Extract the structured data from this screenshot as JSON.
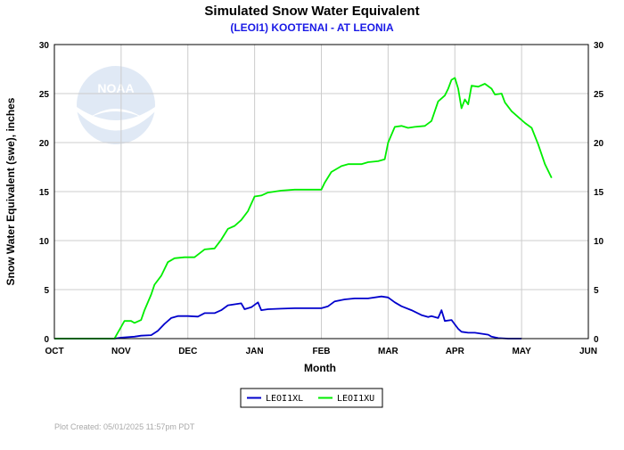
{
  "chart_data": {
    "type": "line",
    "title": "Simulated Snow Water Equivalent",
    "subtitle": "(LEOI1) KOOTENAI - AT LEONIA",
    "xlabel": "Month",
    "ylabel": "Snow Water Equivalent (swe),  inches",
    "x_ticks": [
      "OCT",
      "NOV",
      "DEC",
      "JAN",
      "FEB",
      "MAR",
      "APR",
      "MAY",
      "JUN"
    ],
    "y_ticks": [
      0,
      5,
      10,
      15,
      20,
      25,
      30
    ],
    "xlim": [
      0,
      8
    ],
    "ylim": [
      0,
      30
    ],
    "grid": true,
    "legend_position": "bottom-center",
    "footer": "Plot Created: 05/01/2025 11:57pm PDT",
    "series": [
      {
        "name": "LEOI1XL",
        "color": "#0000cc",
        "points": [
          [
            0,
            0
          ],
          [
            0.9,
            0
          ],
          [
            1.0,
            0.1
          ],
          [
            1.2,
            0.2
          ],
          [
            1.3,
            0.3
          ],
          [
            1.45,
            0.35
          ],
          [
            1.55,
            0.8
          ],
          [
            1.65,
            1.5
          ],
          [
            1.75,
            2.1
          ],
          [
            1.85,
            2.3
          ],
          [
            2.0,
            2.3
          ],
          [
            2.15,
            2.25
          ],
          [
            2.25,
            2.6
          ],
          [
            2.4,
            2.6
          ],
          [
            2.5,
            2.9
          ],
          [
            2.6,
            3.4
          ],
          [
            2.7,
            3.5
          ],
          [
            2.8,
            3.6
          ],
          [
            2.85,
            3.0
          ],
          [
            2.95,
            3.2
          ],
          [
            3.05,
            3.7
          ],
          [
            3.1,
            2.9
          ],
          [
            3.2,
            3.0
          ],
          [
            3.4,
            3.05
          ],
          [
            3.6,
            3.1
          ],
          [
            3.8,
            3.1
          ],
          [
            4.0,
            3.1
          ],
          [
            4.1,
            3.3
          ],
          [
            4.2,
            3.8
          ],
          [
            4.35,
            4.0
          ],
          [
            4.5,
            4.1
          ],
          [
            4.7,
            4.1
          ],
          [
            4.9,
            4.3
          ],
          [
            5.0,
            4.2
          ],
          [
            5.1,
            3.7
          ],
          [
            5.2,
            3.3
          ],
          [
            5.35,
            2.9
          ],
          [
            5.5,
            2.4
          ],
          [
            5.6,
            2.2
          ],
          [
            5.65,
            2.3
          ],
          [
            5.75,
            2.1
          ],
          [
            5.8,
            2.9
          ],
          [
            5.85,
            1.8
          ],
          [
            5.95,
            1.9
          ],
          [
            6.05,
            1.0
          ],
          [
            6.1,
            0.7
          ],
          [
            6.2,
            0.6
          ],
          [
            6.3,
            0.6
          ],
          [
            6.4,
            0.5
          ],
          [
            6.5,
            0.4
          ],
          [
            6.55,
            0.2
          ],
          [
            6.65,
            0.05
          ],
          [
            6.8,
            0.0
          ],
          [
            7.0,
            0.0
          ]
        ]
      },
      {
        "name": "LEOI1XU",
        "color": "#00ee00",
        "points": [
          [
            0,
            0
          ],
          [
            0.9,
            0
          ],
          [
            0.95,
            0.6
          ],
          [
            1.0,
            1.2
          ],
          [
            1.05,
            1.8
          ],
          [
            1.15,
            1.8
          ],
          [
            1.2,
            1.6
          ],
          [
            1.3,
            1.9
          ],
          [
            1.35,
            2.9
          ],
          [
            1.45,
            4.5
          ],
          [
            1.5,
            5.5
          ],
          [
            1.6,
            6.4
          ],
          [
            1.7,
            7.8
          ],
          [
            1.8,
            8.2
          ],
          [
            1.95,
            8.3
          ],
          [
            2.1,
            8.3
          ],
          [
            2.25,
            9.1
          ],
          [
            2.4,
            9.2
          ],
          [
            2.5,
            10.1
          ],
          [
            2.6,
            11.2
          ],
          [
            2.7,
            11.5
          ],
          [
            2.8,
            12.1
          ],
          [
            2.9,
            13.0
          ],
          [
            3.0,
            14.5
          ],
          [
            3.1,
            14.6
          ],
          [
            3.2,
            14.9
          ],
          [
            3.4,
            15.1
          ],
          [
            3.6,
            15.2
          ],
          [
            3.8,
            15.2
          ],
          [
            4.0,
            15.2
          ],
          [
            4.05,
            15.9
          ],
          [
            4.15,
            17.0
          ],
          [
            4.3,
            17.6
          ],
          [
            4.4,
            17.8
          ],
          [
            4.6,
            17.8
          ],
          [
            4.7,
            18.0
          ],
          [
            4.85,
            18.1
          ],
          [
            4.95,
            18.3
          ],
          [
            5.0,
            20.0
          ],
          [
            5.1,
            21.6
          ],
          [
            5.2,
            21.7
          ],
          [
            5.3,
            21.5
          ],
          [
            5.4,
            21.6
          ],
          [
            5.55,
            21.7
          ],
          [
            5.65,
            22.2
          ],
          [
            5.75,
            24.2
          ],
          [
            5.85,
            24.8
          ],
          [
            5.9,
            25.5
          ],
          [
            5.95,
            26.4
          ],
          [
            6.0,
            26.6
          ],
          [
            6.05,
            25.5
          ],
          [
            6.1,
            23.5
          ],
          [
            6.15,
            24.4
          ],
          [
            6.2,
            23.9
          ],
          [
            6.25,
            25.8
          ],
          [
            6.35,
            25.7
          ],
          [
            6.45,
            26.0
          ],
          [
            6.55,
            25.5
          ],
          [
            6.6,
            24.9
          ],
          [
            6.7,
            25.0
          ],
          [
            6.75,
            24.1
          ],
          [
            6.85,
            23.2
          ],
          [
            6.95,
            22.6
          ],
          [
            7.05,
            22.0
          ],
          [
            7.15,
            21.5
          ],
          [
            7.25,
            19.8
          ],
          [
            7.35,
            17.8
          ],
          [
            7.45,
            16.4
          ]
        ]
      }
    ]
  },
  "watermark_text": "NOAA",
  "colors": {
    "subtitle": "#1a1ae6",
    "grid": "#cccccc",
    "frame": "#000000"
  }
}
